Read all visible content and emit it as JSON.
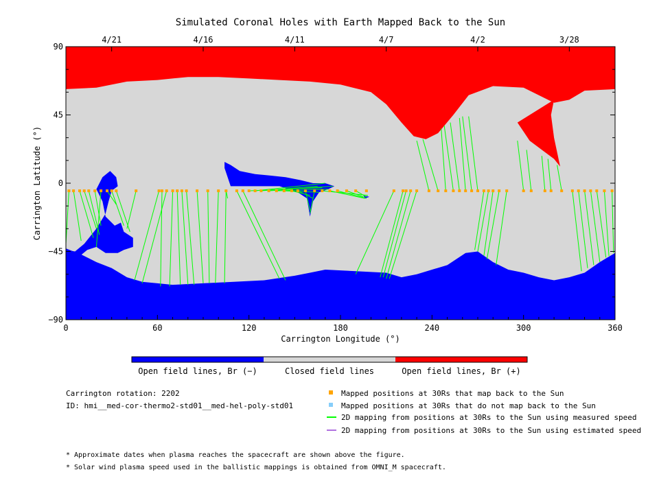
{
  "chart_data": {
    "type": "map",
    "title": "Simulated Coronal Holes with Earth Mapped Back to the Sun",
    "xlabel": "Carrington Longitude (°)",
    "ylabel": "Carrington Latitude (°)",
    "xlim": [
      0,
      360
    ],
    "ylim": [
      -90,
      90
    ],
    "x_ticks": [
      0,
      60,
      120,
      180,
      240,
      300,
      360
    ],
    "y_ticks": [
      -90,
      -45,
      0,
      45,
      90
    ],
    "x_tick_labels": [
      "0",
      "60",
      "120",
      "180",
      "240",
      "300",
      "360"
    ],
    "y_tick_labels": [
      "−90",
      "−45",
      "0",
      "45",
      "90"
    ],
    "top_axis_dates": [
      {
        "label": "4/21",
        "lon": 30
      },
      {
        "label": "4/16",
        "lon": 90
      },
      {
        "label": "4/11",
        "lon": 150
      },
      {
        "label": "4/7",
        "lon": 210
      },
      {
        "label": "4/2",
        "lon": 270
      },
      {
        "label": "3/28",
        "lon": 330
      }
    ],
    "colorbar": [
      {
        "label": "Open field lines, Br (−)",
        "color": "#0000ff"
      },
      {
        "label": "Closed field lines",
        "color": "#d7d7d7"
      },
      {
        "label": "Open field lines, Br (+)",
        "color": "#ff0000"
      }
    ],
    "regions": {
      "north_positive": [
        [
          0,
          62
        ],
        [
          20,
          63
        ],
        [
          40,
          67
        ],
        [
          60,
          68
        ],
        [
          80,
          70
        ],
        [
          100,
          70
        ],
        [
          120,
          69
        ],
        [
          140,
          68
        ],
        [
          160,
          67
        ],
        [
          180,
          65
        ],
        [
          200,
          60
        ],
        [
          210,
          52
        ],
        [
          220,
          40
        ],
        [
          228,
          31
        ],
        [
          236,
          29
        ],
        [
          244,
          33
        ],
        [
          254,
          45
        ],
        [
          264,
          58
        ],
        [
          280,
          64
        ],
        [
          300,
          63
        ],
        [
          320,
          53
        ],
        [
          330,
          55
        ],
        [
          340,
          61
        ],
        [
          360,
          62
        ]
      ],
      "north_positive_tongue": [
        [
          296,
          40
        ],
        [
          304,
          28
        ],
        [
          312,
          22
        ],
        [
          320,
          16
        ],
        [
          324,
          11
        ],
        [
          320,
          30
        ],
        [
          318,
          45
        ],
        [
          320,
          55
        ]
      ],
      "south_negative": [
        [
          0,
          -43
        ],
        [
          10,
          -47
        ],
        [
          20,
          -52
        ],
        [
          30,
          -56
        ],
        [
          40,
          -62
        ],
        [
          50,
          -65
        ],
        [
          60,
          -66
        ],
        [
          70,
          -67
        ],
        [
          90,
          -66
        ],
        [
          110,
          -65
        ],
        [
          130,
          -64
        ],
        [
          150,
          -61
        ],
        [
          160,
          -59
        ],
        [
          170,
          -57
        ],
        [
          190,
          -58
        ],
        [
          210,
          -59
        ],
        [
          220,
          -62
        ],
        [
          230,
          -60
        ],
        [
          240,
          -57
        ],
        [
          250,
          -54
        ],
        [
          262,
          -46
        ],
        [
          270,
          -45
        ],
        [
          280,
          -52
        ],
        [
          290,
          -57
        ],
        [
          300,
          -59
        ],
        [
          310,
          -62
        ],
        [
          320,
          -64
        ],
        [
          330,
          -62
        ],
        [
          340,
          -59
        ],
        [
          350,
          -52
        ],
        [
          360,
          -46
        ]
      ],
      "south_hole_left": [
        [
          0,
          -44
        ],
        [
          6,
          -45
        ],
        [
          12,
          -40
        ],
        [
          20,
          -30
        ],
        [
          26,
          -20
        ],
        [
          28,
          -12
        ],
        [
          30,
          -5
        ],
        [
          34,
          -2
        ],
        [
          33,
          4
        ],
        [
          29,
          8
        ],
        [
          24,
          4
        ],
        [
          20,
          -4
        ],
        [
          24,
          -12
        ],
        [
          26,
          -22
        ],
        [
          32,
          -28
        ],
        [
          36,
          -26
        ],
        [
          38,
          -32
        ],
        [
          44,
          -36
        ],
        [
          44,
          -42
        ],
        [
          38,
          -44
        ],
        [
          34,
          -46
        ],
        [
          26,
          -46
        ],
        [
          20,
          -42
        ],
        [
          14,
          -44
        ],
        [
          8,
          -49
        ],
        [
          2,
          -49
        ]
      ],
      "mid_hole": [
        [
          104,
          14
        ],
        [
          108,
          12
        ],
        [
          114,
          8
        ],
        [
          124,
          6
        ],
        [
          134,
          5
        ],
        [
          144,
          4
        ],
        [
          154,
          2
        ],
        [
          162,
          0
        ],
        [
          170,
          0
        ],
        [
          176,
          -2
        ],
        [
          172,
          -4
        ],
        [
          166,
          -6
        ],
        [
          162,
          -12
        ],
        [
          160,
          -22
        ],
        [
          158,
          -10
        ],
        [
          152,
          -6
        ],
        [
          140,
          -2
        ],
        [
          128,
          -2
        ],
        [
          118,
          -2
        ],
        [
          108,
          -2
        ],
        [
          106,
          4
        ],
        [
          104,
          10
        ]
      ],
      "small_hole": [
        [
          195,
          -8
        ],
        [
          199,
          -9
        ],
        [
          196,
          -10
        ]
      ]
    },
    "mapped_positions_30Rs": {
      "lat": -5,
      "lon": [
        2,
        5,
        9,
        12,
        15,
        19,
        23,
        27,
        30,
        33,
        46,
        61,
        63,
        66,
        70,
        73,
        76,
        79,
        86,
        93,
        100,
        105,
        112,
        116,
        120,
        124,
        128,
        133,
        138,
        143,
        148,
        152,
        157,
        163,
        168,
        173,
        178,
        184,
        190,
        197,
        215,
        221,
        223,
        226,
        230,
        238,
        244,
        249,
        254,
        258,
        262,
        266,
        270,
        274,
        277,
        280,
        284,
        289,
        300,
        305,
        314,
        318,
        325,
        332,
        336,
        340,
        344,
        348,
        353,
        358
      ]
    },
    "mapping_lines_measured_speed": [
      [
        2,
        -5,
        0,
        -40
      ],
      [
        5,
        -5,
        10,
        -38
      ],
      [
        9,
        -5,
        18,
        -36
      ],
      [
        12,
        -5,
        20,
        -30
      ],
      [
        15,
        -5,
        22,
        -34
      ],
      [
        19,
        -5,
        23,
        -28
      ],
      [
        23,
        -5,
        20,
        -42
      ],
      [
        27,
        -5,
        33,
        -14
      ],
      [
        30,
        -5,
        38,
        -28
      ],
      [
        33,
        -5,
        42,
        -32
      ],
      [
        46,
        -5,
        40,
        -30
      ],
      [
        61,
        -5,
        45,
        -64
      ],
      [
        63,
        -5,
        62,
        -68
      ],
      [
        66,
        -5,
        50,
        -66
      ],
      [
        70,
        -5,
        68,
        -68
      ],
      [
        73,
        -5,
        75,
        -67
      ],
      [
        76,
        -5,
        80,
        -67
      ],
      [
        79,
        -5,
        84,
        -67
      ],
      [
        86,
        -5,
        90,
        -66
      ],
      [
        93,
        -5,
        94,
        -66
      ],
      [
        100,
        -5,
        98,
        -66
      ],
      [
        105,
        -5,
        104,
        -66
      ],
      [
        105,
        -5,
        106,
        -10
      ],
      [
        112,
        -5,
        140,
        -63
      ],
      [
        116,
        -5,
        144,
        -64
      ],
      [
        120,
        -5,
        168,
        -3
      ],
      [
        124,
        -5,
        170,
        0
      ],
      [
        128,
        -5,
        165,
        -2
      ],
      [
        133,
        -5,
        175,
        -2
      ],
      [
        138,
        -5,
        172,
        -4
      ],
      [
        143,
        -5,
        166,
        -6
      ],
      [
        148,
        -5,
        160,
        -8
      ],
      [
        152,
        -5,
        162,
        -10
      ],
      [
        157,
        -5,
        160,
        -18
      ],
      [
        163,
        -5,
        160,
        -20
      ],
      [
        168,
        -5,
        198,
        -8
      ],
      [
        173,
        -5,
        196,
        -10
      ],
      [
        178,
        -5,
        197,
        -10
      ],
      [
        184,
        -5,
        195,
        -9
      ],
      [
        190,
        -5,
        197,
        -9
      ],
      [
        215,
        -5,
        190,
        -60
      ],
      [
        221,
        -5,
        206,
        -62
      ],
      [
        223,
        -5,
        208,
        -62
      ],
      [
        226,
        -5,
        210,
        -63
      ],
      [
        230,
        -5,
        212,
        -63
      ],
      [
        238,
        -5,
        230,
        28
      ],
      [
        244,
        -5,
        234,
        29
      ],
      [
        249,
        -5,
        246,
        36
      ],
      [
        254,
        -5,
        248,
        38
      ],
      [
        258,
        -5,
        252,
        40
      ],
      [
        262,
        -5,
        258,
        43
      ],
      [
        266,
        -5,
        260,
        44
      ],
      [
        270,
        -5,
        264,
        44
      ],
      [
        274,
        -5,
        268,
        -44
      ],
      [
        277,
        -5,
        270,
        -45
      ],
      [
        280,
        -5,
        274,
        -48
      ],
      [
        284,
        -5,
        276,
        -50
      ],
      [
        289,
        -5,
        282,
        -54
      ],
      [
        300,
        -5,
        296,
        28
      ],
      [
        305,
        -5,
        302,
        22
      ],
      [
        314,
        -5,
        312,
        18
      ],
      [
        318,
        -5,
        316,
        16
      ],
      [
        325,
        -5,
        322,
        12
      ],
      [
        332,
        -5,
        338,
        -58
      ],
      [
        336,
        -5,
        342,
        -56
      ],
      [
        340,
        -5,
        346,
        -54
      ],
      [
        344,
        -5,
        350,
        -52
      ],
      [
        348,
        -5,
        354,
        -49
      ],
      [
        353,
        -5,
        356,
        -48
      ],
      [
        358,
        -5,
        359,
        -46
      ]
    ]
  },
  "legend": {
    "carrington_rotation": "Carrington rotation: 2202",
    "id_text": "ID: hmi__med-cor-thermo2-std01__med-hel-poly-std01",
    "items": [
      {
        "label": "Mapped positions at 30Rs that map back to the Sun",
        "color": "#ffa500",
        "kind": "square"
      },
      {
        "label": "Mapped positions at 30Rs that do not map back to the Sun",
        "color": "#87cefa",
        "kind": "square"
      },
      {
        "label": "2D mapping from positions at 30Rs to the Sun using measured speed",
        "color": "#00ff00",
        "kind": "line"
      },
      {
        "label": "2D mapping from positions at 30Rs to the Sun using estimated speed",
        "color": "#b070e0",
        "kind": "line"
      }
    ]
  },
  "footnotes": [
    "* Approximate dates when plasma reaches the spacecraft are shown above the figure.",
    "* Solar wind plasma speed used in the ballistic mappings is obtained from OMNI_M spacecraft."
  ],
  "colors": {
    "negative_open": "#0000ff",
    "closed": "#d7d7d7",
    "positive_open": "#ff0000",
    "mapping_line": "#00ff00",
    "mapped_point": "#ffa500"
  }
}
